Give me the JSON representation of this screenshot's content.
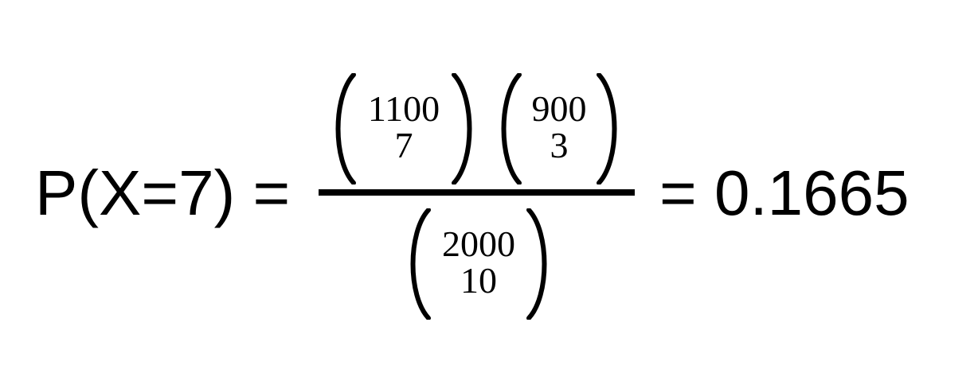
{
  "equation": {
    "lhs": "P(X=7) =",
    "rhs": "= 0.1665",
    "numerator": [
      {
        "top": "1100",
        "bottom": "7"
      },
      {
        "top": "900",
        "bottom": "3"
      }
    ],
    "denominator": [
      {
        "top": "2000",
        "bottom": "10"
      }
    ]
  }
}
